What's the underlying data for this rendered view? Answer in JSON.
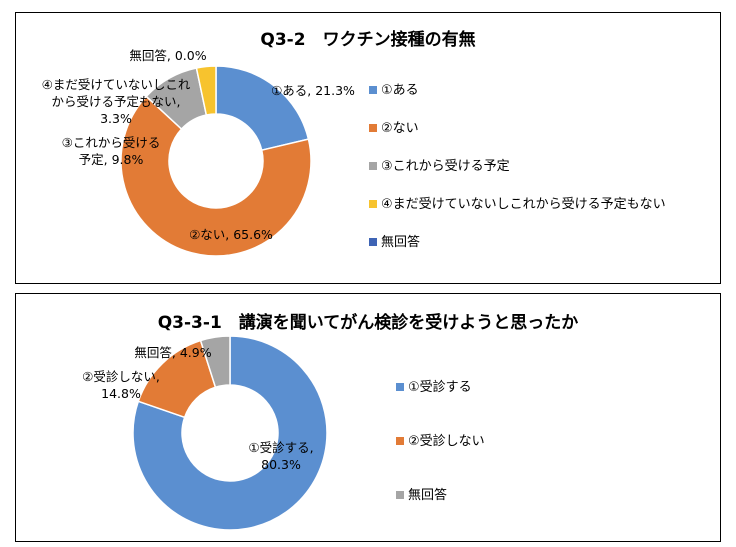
{
  "chart_data": [
    {
      "type": "pie",
      "donut": true,
      "title": "Q3-2　ワクチン接種の有無",
      "categories": [
        "①ある",
        "②ない",
        "③これから受ける予定",
        "④まだ受けていないしこれから受ける予定もない",
        "無回答"
      ],
      "values": [
        21.3,
        65.6,
        9.8,
        3.3,
        0.0
      ],
      "unit": "%",
      "colors": [
        "#5B8FD0",
        "#E27B36",
        "#A5A5A5",
        "#F7C32E",
        "#3E64B5"
      ],
      "data_labels": [
        [
          "①ある, 21.3%"
        ],
        [
          "②ない, 65.6%"
        ],
        [
          "③これから受ける",
          "予定, 9.8%"
        ],
        [
          "④まだ受けていないしこれ",
          "から受ける予定もない,",
          "3.3%"
        ],
        [
          "無回答, 0.0%"
        ]
      ],
      "legend_position": "right"
    },
    {
      "type": "pie",
      "donut": true,
      "title": "Q3-3-1　講演を聞いてがん検診を受けようと思ったか",
      "categories": [
        "①受診する",
        "②受診しない",
        "無回答"
      ],
      "values": [
        80.3,
        14.8,
        4.9
      ],
      "unit": "%",
      "colors": [
        "#5B8FD0",
        "#E27B36",
        "#A5A5A5"
      ],
      "data_labels": [
        [
          "①受診する,",
          "80.3%"
        ],
        [
          "②受診しない,",
          "14.8%"
        ],
        [
          "無回答, 4.9%"
        ]
      ],
      "legend_position": "right"
    }
  ]
}
